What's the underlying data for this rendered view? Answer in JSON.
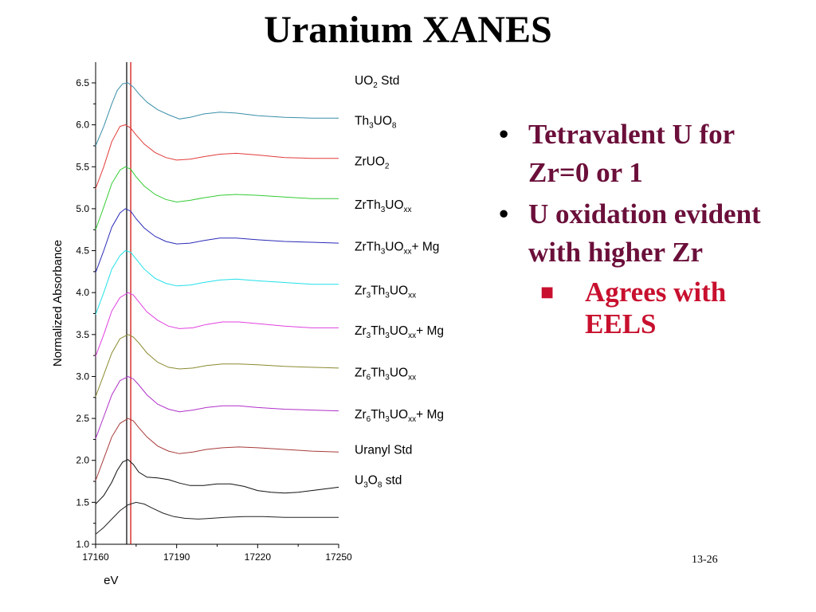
{
  "slide": {
    "title": "Uranium XANES",
    "page_number": "13-26",
    "bullets": [
      {
        "text": "Tetravalent U for Zr=0 or 1"
      },
      {
        "text": "U oxidation evident with higher Zr"
      }
    ],
    "sub_bullets": [
      {
        "text": "Agrees with EELS"
      }
    ],
    "colors": {
      "bullet_text": "#6b0f3a",
      "sub_bullet_text": "#c8102e"
    }
  },
  "chart_data": {
    "type": "line",
    "xlabel": "eV",
    "ylabel": "Normalized Absorbance",
    "xlim": [
      17160,
      17250
    ],
    "ylim": [
      1.0,
      6.8
    ],
    "x_ticks": [
      17160,
      17190,
      17220,
      17250
    ],
    "x_tick_labels": [
      "17160",
      "17190",
      "17220",
      "17250"
    ],
    "y_ticks": [
      1.0,
      1.5,
      2.0,
      2.5,
      3.0,
      3.5,
      4.0,
      4.5,
      5.0,
      5.5,
      6.0,
      6.5
    ],
    "y_tick_labels": [
      "1.0",
      "1.5",
      "2.0",
      "2.5",
      "3.0",
      "3.5",
      "4.0",
      "4.5",
      "5.0",
      "5.5",
      "6.0",
      "6.5"
    ],
    "reference_lines": [
      {
        "x": 17171.5,
        "color": "#000000"
      },
      {
        "x": 17173.0,
        "color": "#cc0000"
      }
    ],
    "series": [
      {
        "name": "UO2 Std",
        "label": [
          {
            "t": "UO"
          },
          {
            "t": "2",
            "s": "sub"
          },
          {
            "t": " Std"
          }
        ],
        "color": "#3a8fa8",
        "baseline": 6.08,
        "points": [
          [
            17160,
            5.75
          ],
          [
            17163,
            5.98
          ],
          [
            17166,
            6.25
          ],
          [
            17168,
            6.41
          ],
          [
            17170,
            6.49
          ],
          [
            17172,
            6.5
          ],
          [
            17174,
            6.45
          ],
          [
            17176,
            6.37
          ],
          [
            17179,
            6.27
          ],
          [
            17183,
            6.18
          ],
          [
            17187,
            6.12
          ],
          [
            17191,
            6.07
          ],
          [
            17195,
            6.09
          ],
          [
            17200,
            6.13
          ],
          [
            17206,
            6.15
          ],
          [
            17212,
            6.14
          ],
          [
            17220,
            6.11
          ],
          [
            17230,
            6.09
          ],
          [
            17240,
            6.08
          ],
          [
            17250,
            6.08
          ]
        ]
      },
      {
        "name": "Th3UO8",
        "label": [
          {
            "t": "Th"
          },
          {
            "t": "3",
            "s": "sub"
          },
          {
            "t": "UO"
          },
          {
            "t": "8",
            "s": "sub"
          }
        ],
        "color": "#e23b3b",
        "baseline": 5.6,
        "points": [
          [
            17160,
            5.24
          ],
          [
            17163,
            5.5
          ],
          [
            17166,
            5.8
          ],
          [
            17169,
            5.98
          ],
          [
            17171,
            6.0
          ],
          [
            17173,
            5.96
          ],
          [
            17175,
            5.88
          ],
          [
            17178,
            5.77
          ],
          [
            17182,
            5.67
          ],
          [
            17186,
            5.61
          ],
          [
            17190,
            5.58
          ],
          [
            17195,
            5.59
          ],
          [
            17200,
            5.62
          ],
          [
            17206,
            5.65
          ],
          [
            17212,
            5.66
          ],
          [
            17220,
            5.64
          ],
          [
            17230,
            5.61
          ],
          [
            17240,
            5.6
          ],
          [
            17250,
            5.6
          ]
        ]
      },
      {
        "name": "ZrUO2",
        "label": [
          {
            "t": "ZrUO"
          },
          {
            "t": "2",
            "s": "sub"
          }
        ],
        "color": "#33cc33",
        "baseline": 5.12,
        "points": [
          [
            17160,
            4.75
          ],
          [
            17163,
            5.02
          ],
          [
            17166,
            5.3
          ],
          [
            17169,
            5.46
          ],
          [
            17171,
            5.5
          ],
          [
            17173,
            5.47
          ],
          [
            17175,
            5.38
          ],
          [
            17178,
            5.27
          ],
          [
            17182,
            5.17
          ],
          [
            17186,
            5.11
          ],
          [
            17190,
            5.08
          ],
          [
            17195,
            5.1
          ],
          [
            17200,
            5.13
          ],
          [
            17206,
            5.16
          ],
          [
            17212,
            5.17
          ],
          [
            17220,
            5.16
          ],
          [
            17230,
            5.14
          ],
          [
            17240,
            5.12
          ],
          [
            17250,
            5.12
          ]
        ]
      },
      {
        "name": "ZrTh3UOxx",
        "label": [
          {
            "t": "ZrTh"
          },
          {
            "t": "3",
            "s": "sub"
          },
          {
            "t": "UO"
          },
          {
            "t": "xx",
            "s": "sub"
          }
        ],
        "color": "#2a2ab8",
        "baseline": 4.6,
        "points": [
          [
            17160,
            4.24
          ],
          [
            17163,
            4.5
          ],
          [
            17166,
            4.78
          ],
          [
            17169,
            4.95
          ],
          [
            17171,
            5.0
          ],
          [
            17173,
            4.97
          ],
          [
            17175,
            4.88
          ],
          [
            17178,
            4.77
          ],
          [
            17182,
            4.67
          ],
          [
            17186,
            4.61
          ],
          [
            17190,
            4.58
          ],
          [
            17195,
            4.59
          ],
          [
            17200,
            4.62
          ],
          [
            17206,
            4.65
          ],
          [
            17212,
            4.65
          ],
          [
            17220,
            4.63
          ],
          [
            17230,
            4.61
          ],
          [
            17240,
            4.6
          ],
          [
            17250,
            4.59
          ]
        ]
      },
      {
        "name": "ZrTh3UOxx + Mg",
        "label": [
          {
            "t": "ZrTh"
          },
          {
            "t": "3",
            "s": "sub"
          },
          {
            "t": "UO"
          },
          {
            "t": "xx",
            "s": "sub"
          },
          {
            "t": "+ Mg"
          }
        ],
        "color": "#22e0e8",
        "baseline": 4.1,
        "points": [
          [
            17160,
            3.74
          ],
          [
            17163,
            4.0
          ],
          [
            17166,
            4.28
          ],
          [
            17169,
            4.44
          ],
          [
            17171,
            4.5
          ],
          [
            17173,
            4.48
          ],
          [
            17175,
            4.4
          ],
          [
            17178,
            4.28
          ],
          [
            17182,
            4.17
          ],
          [
            17186,
            4.11
          ],
          [
            17190,
            4.08
          ],
          [
            17195,
            4.09
          ],
          [
            17200,
            4.12
          ],
          [
            17206,
            4.15
          ],
          [
            17212,
            4.16
          ],
          [
            17220,
            4.14
          ],
          [
            17230,
            4.12
          ],
          [
            17240,
            4.1
          ],
          [
            17250,
            4.1
          ]
        ]
      },
      {
        "name": "Zr3Th3UOxx",
        "label": [
          {
            "t": "Zr"
          },
          {
            "t": "3",
            "s": "sub"
          },
          {
            "t": "Th"
          },
          {
            "t": "3",
            "s": "sub"
          },
          {
            "t": "UO"
          },
          {
            "t": "xx",
            "s": "sub"
          }
        ],
        "color": "#e040e0",
        "baseline": 3.58,
        "points": [
          [
            17160,
            3.24
          ],
          [
            17163,
            3.5
          ],
          [
            17166,
            3.78
          ],
          [
            17169,
            3.94
          ],
          [
            17172,
            4.0
          ],
          [
            17174,
            3.97
          ],
          [
            17176,
            3.89
          ],
          [
            17179,
            3.77
          ],
          [
            17183,
            3.67
          ],
          [
            17187,
            3.6
          ],
          [
            17191,
            3.57
          ],
          [
            17196,
            3.58
          ],
          [
            17201,
            3.62
          ],
          [
            17207,
            3.65
          ],
          [
            17213,
            3.65
          ],
          [
            17220,
            3.63
          ],
          [
            17230,
            3.6
          ],
          [
            17240,
            3.58
          ],
          [
            17250,
            3.58
          ]
        ]
      },
      {
        "name": "Zr3Th3UOxx + Mg",
        "label": [
          {
            "t": "Zr"
          },
          {
            "t": "3",
            "s": "sub"
          },
          {
            "t": "Th"
          },
          {
            "t": "3",
            "s": "sub"
          },
          {
            "t": "UO"
          },
          {
            "t": "xx",
            "s": "sub"
          },
          {
            "t": "+ Mg"
          }
        ],
        "color": "#8a8a30",
        "baseline": 3.1,
        "points": [
          [
            17160,
            2.76
          ],
          [
            17163,
            3.02
          ],
          [
            17166,
            3.28
          ],
          [
            17169,
            3.45
          ],
          [
            17172,
            3.5
          ],
          [
            17174,
            3.47
          ],
          [
            17176,
            3.4
          ],
          [
            17179,
            3.28
          ],
          [
            17183,
            3.17
          ],
          [
            17187,
            3.11
          ],
          [
            17191,
            3.09
          ],
          [
            17196,
            3.1
          ],
          [
            17201,
            3.13
          ],
          [
            17207,
            3.15
          ],
          [
            17213,
            3.15
          ],
          [
            17220,
            3.14
          ],
          [
            17230,
            3.12
          ],
          [
            17240,
            3.11
          ],
          [
            17250,
            3.1
          ]
        ]
      },
      {
        "name": "Zr6Th3UOxx",
        "label": [
          {
            "t": "Zr"
          },
          {
            "t": "6",
            "s": "sub"
          },
          {
            "t": "Th"
          },
          {
            "t": "3",
            "s": "sub"
          },
          {
            "t": "UO"
          },
          {
            "t": "xx",
            "s": "sub"
          }
        ],
        "color": "#b030c8",
        "baseline": 2.6,
        "points": [
          [
            17160,
            2.26
          ],
          [
            17163,
            2.52
          ],
          [
            17166,
            2.78
          ],
          [
            17169,
            2.95
          ],
          [
            17172,
            3.0
          ],
          [
            17174,
            2.97
          ],
          [
            17176,
            2.9
          ],
          [
            17179,
            2.78
          ],
          [
            17183,
            2.67
          ],
          [
            17187,
            2.61
          ],
          [
            17191,
            2.58
          ],
          [
            17196,
            2.6
          ],
          [
            17201,
            2.63
          ],
          [
            17207,
            2.65
          ],
          [
            17213,
            2.65
          ],
          [
            17220,
            2.63
          ],
          [
            17230,
            2.61
          ],
          [
            17240,
            2.6
          ],
          [
            17250,
            2.59
          ]
        ]
      },
      {
        "name": "Zr6Th3UOxx + Mg",
        "label": [
          {
            "t": "Zr"
          },
          {
            "t": "6",
            "s": "sub"
          },
          {
            "t": "Th"
          },
          {
            "t": "3",
            "s": "sub"
          },
          {
            "t": "UO"
          },
          {
            "t": "xx",
            "s": "sub"
          },
          {
            "t": "+ Mg"
          }
        ],
        "color": "#a83a3a",
        "baseline": 2.1,
        "points": [
          [
            17160,
            1.76
          ],
          [
            17163,
            2.02
          ],
          [
            17166,
            2.28
          ],
          [
            17169,
            2.44
          ],
          [
            17172,
            2.5
          ],
          [
            17174,
            2.47
          ],
          [
            17176,
            2.39
          ],
          [
            17179,
            2.28
          ],
          [
            17183,
            2.17
          ],
          [
            17187,
            2.11
          ],
          [
            17191,
            2.08
          ],
          [
            17196,
            2.1
          ],
          [
            17201,
            2.13
          ],
          [
            17207,
            2.15
          ],
          [
            17213,
            2.16
          ],
          [
            17220,
            2.15
          ],
          [
            17230,
            2.13
          ],
          [
            17240,
            2.11
          ],
          [
            17250,
            2.1
          ]
        ]
      },
      {
        "name": "Uranyl Std",
        "label": [
          {
            "t": "Uranyl Std"
          }
        ],
        "color": "#111111",
        "baseline": 1.68,
        "points": [
          [
            17160,
            1.48
          ],
          [
            17163,
            1.58
          ],
          [
            17166,
            1.74
          ],
          [
            17168,
            1.88
          ],
          [
            17170,
            1.98
          ],
          [
            17172,
            2.01
          ],
          [
            17174,
            1.95
          ],
          [
            17176,
            1.86
          ],
          [
            17179,
            1.8
          ],
          [
            17183,
            1.79
          ],
          [
            17187,
            1.77
          ],
          [
            17191,
            1.73
          ],
          [
            17195,
            1.7
          ],
          [
            17200,
            1.7
          ],
          [
            17205,
            1.72
          ],
          [
            17210,
            1.72
          ],
          [
            17215,
            1.69
          ],
          [
            17220,
            1.64
          ],
          [
            17225,
            1.62
          ],
          [
            17230,
            1.61
          ],
          [
            17235,
            1.62
          ],
          [
            17240,
            1.64
          ],
          [
            17245,
            1.66
          ],
          [
            17250,
            1.68
          ]
        ]
      },
      {
        "name": "U3O8 std",
        "label": [
          {
            "t": "U"
          },
          {
            "t": "3",
            "s": "sub"
          },
          {
            "t": "O"
          },
          {
            "t": "8",
            "s": "sub"
          },
          {
            "t": " std"
          }
        ],
        "color": "#222222",
        "baseline": 1.32,
        "points": [
          [
            17160,
            1.12
          ],
          [
            17163,
            1.2
          ],
          [
            17166,
            1.3
          ],
          [
            17169,
            1.4
          ],
          [
            17172,
            1.47
          ],
          [
            17175,
            1.5
          ],
          [
            17178,
            1.48
          ],
          [
            17181,
            1.43
          ],
          [
            17185,
            1.37
          ],
          [
            17189,
            1.33
          ],
          [
            17193,
            1.31
          ],
          [
            17198,
            1.3
          ],
          [
            17203,
            1.31
          ],
          [
            17208,
            1.32
          ],
          [
            17215,
            1.33
          ],
          [
            17222,
            1.33
          ],
          [
            17230,
            1.32
          ],
          [
            17240,
            1.32
          ],
          [
            17250,
            1.32
          ]
        ]
      }
    ]
  }
}
